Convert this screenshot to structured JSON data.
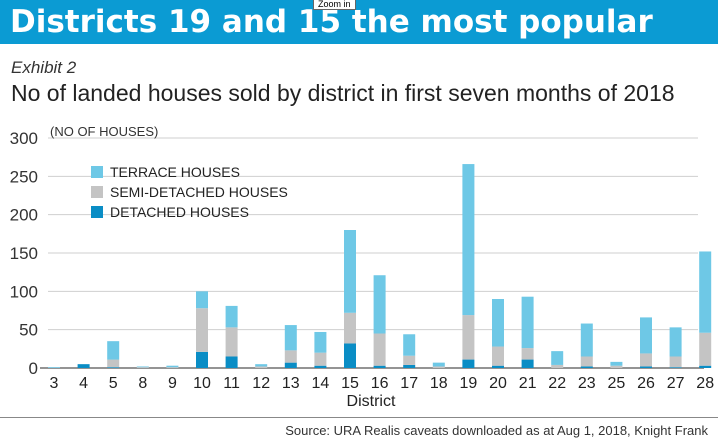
{
  "banner": {
    "title": "Districts 19 and 15 the most popular",
    "zoom_tooltip": "Zoom in"
  },
  "exhibit_label": "Exhibit 2",
  "source": "Source: URA Realis caveats downloaded as at Aug 1, 2018, Knight Frank",
  "colors": {
    "banner": "#0b9bd3",
    "terrace": "#6ec8e6",
    "semi_detached": "#c4c4c4",
    "detached": "#0a8dc5"
  },
  "chart_data": {
    "type": "bar",
    "stacked": true,
    "title": "No of landed houses sold by district in first seven months of 2018",
    "ylabel": "(NO OF HOUSES)",
    "xlabel": "District",
    "ylim": [
      0,
      300
    ],
    "yticks": [
      0,
      50,
      100,
      150,
      200,
      250,
      300
    ],
    "grid": true,
    "legend_position": "top-left",
    "categories": [
      "3",
      "4",
      "5",
      "8",
      "9",
      "10",
      "11",
      "12",
      "13",
      "14",
      "15",
      "16",
      "17",
      "18",
      "19",
      "20",
      "21",
      "22",
      "23",
      "25",
      "26",
      "27",
      "28"
    ],
    "series": [
      {
        "name": "DETACHED HOUSES",
        "color": "#0a8dc5",
        "values": [
          0,
          5,
          1,
          0,
          0,
          21,
          15,
          0,
          7,
          3,
          32,
          3,
          4,
          0,
          11,
          3,
          11,
          0,
          2,
          0,
          2,
          1,
          3
        ]
      },
      {
        "name": "SEMI-DETACHED HOUSES",
        "color": "#c4c4c4",
        "values": [
          0,
          0,
          10,
          1,
          1,
          57,
          38,
          2,
          16,
          17,
          40,
          42,
          12,
          2,
          58,
          25,
          15,
          4,
          13,
          3,
          17,
          14,
          43
        ]
      },
      {
        "name": "TERRACE HOUSES",
        "color": "#6ec8e6",
        "values": [
          1,
          0,
          24,
          1,
          2,
          22,
          28,
          3,
          33,
          27,
          108,
          76,
          28,
          5,
          197,
          62,
          67,
          18,
          43,
          5,
          47,
          38,
          106
        ]
      }
    ]
  }
}
